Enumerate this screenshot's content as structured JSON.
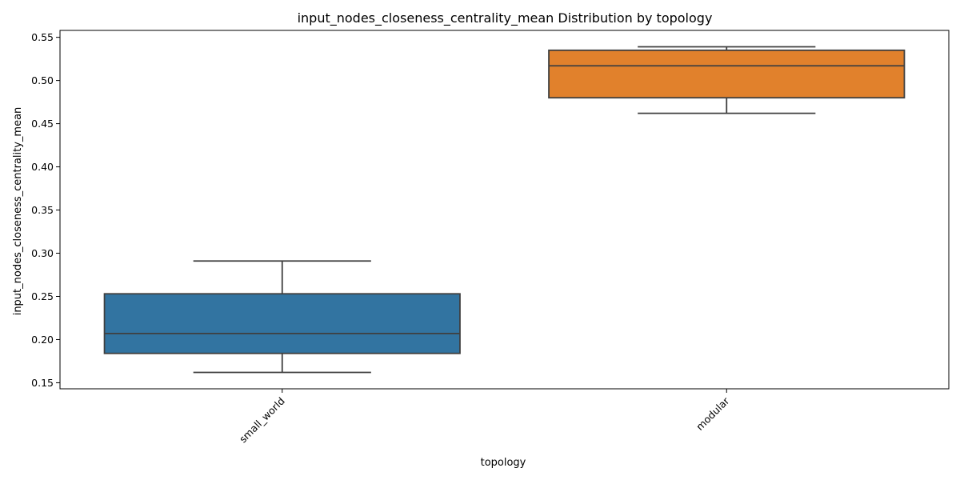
{
  "chart_data": {
    "type": "box",
    "title": "input_nodes_closeness_centrality_mean Distribution by topology",
    "xlabel": "topology",
    "ylabel": "input_nodes_closeness_centrality_mean",
    "ylim": [
      0.143,
      0.558
    ],
    "yticks": [
      "0.15",
      "0.20",
      "0.25",
      "0.30",
      "0.35",
      "0.40",
      "0.45",
      "0.50",
      "0.55"
    ],
    "grid": false,
    "categories": [
      {
        "name": "small_world",
        "color": "#3274a1",
        "whisker_low": 0.162,
        "q1": 0.184,
        "median": 0.207,
        "q3": 0.253,
        "whisker_high": 0.291
      },
      {
        "name": "modular",
        "color": "#e1812c",
        "whisker_low": 0.462,
        "q1": 0.48,
        "median": 0.517,
        "q3": 0.535,
        "whisker_high": 0.539
      }
    ]
  }
}
